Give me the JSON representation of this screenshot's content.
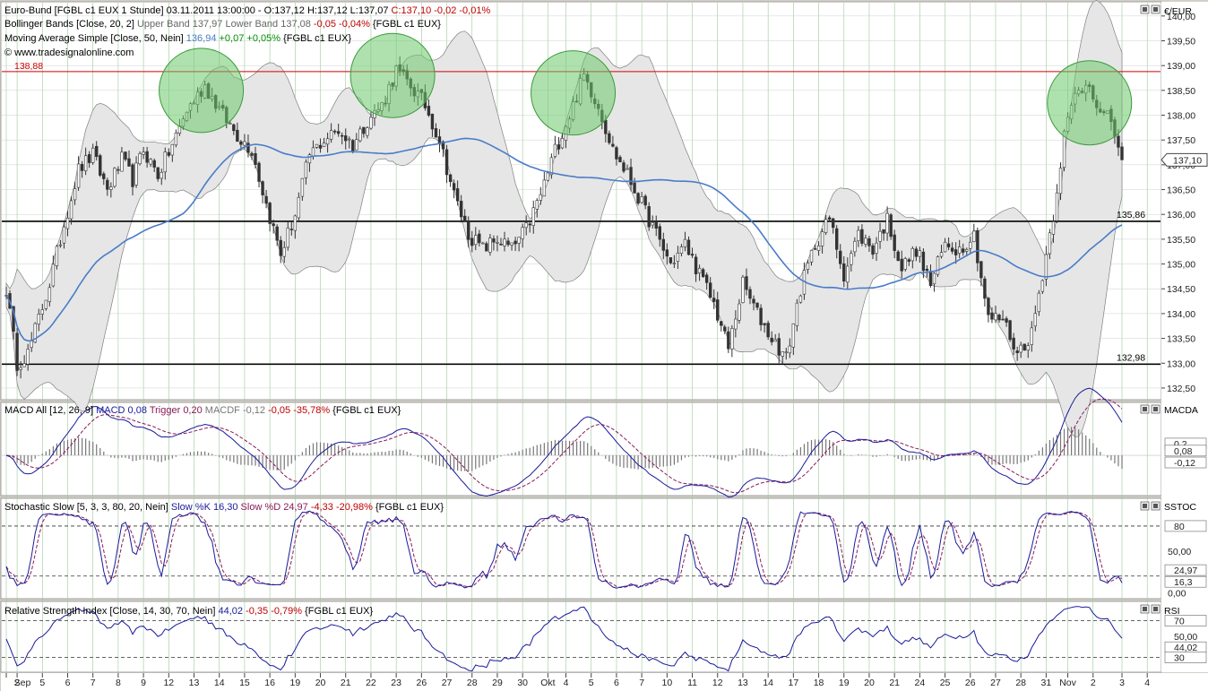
{
  "header": {
    "main": [
      {
        "parts": [
          {
            "text": "Euro-Bund [FGBL c1 EUX  1 Stunde] 03.11.2011 13:00:00 - O:137,12 H:137,12 L:137,07 ",
            "color": "#000000"
          },
          {
            "text": "C:137,10 -0,02 -0,01%",
            "color": "#c00000"
          }
        ]
      },
      {
        "parts": [
          {
            "text": "Bollinger Bands [Close, 20, 2] ",
            "color": "#000000"
          },
          {
            "text": "Upper Band 137,97 Lower Band 137,08 ",
            "color": "#666666"
          },
          {
            "text": "-0,05 -0,04%",
            "color": "#c00000"
          },
          {
            "text": " {FGBL c1 EUX}",
            "color": "#000000"
          }
        ]
      },
      {
        "parts": [
          {
            "text": "Moving Average Simple [Close, 50, Nein] ",
            "color": "#000000"
          },
          {
            "text": "136,94 ",
            "color": "#4a7cc8"
          },
          {
            "text": "+0,07 +0,05%",
            "color": "#009000"
          },
          {
            "text": " {FGBL c1 EUX}",
            "color": "#000000"
          }
        ]
      }
    ],
    "copyright": "© www.tradesignalonline.com",
    "macd": [
      {
        "text": "MACD All [12, 26, 9] ",
        "color": "#000000"
      },
      {
        "text": "MACD 0,08 ",
        "color": "#1a1a9a"
      },
      {
        "text": "Trigger 0,20 ",
        "color": "#8a1a5a"
      },
      {
        "text": "MACDF -0,12 ",
        "color": "#777777"
      },
      {
        "text": "-0,05 -35,78%",
        "color": "#c00000"
      },
      {
        "text": " {FGBL c1 EUX}",
        "color": "#000000"
      }
    ],
    "stoch": [
      {
        "text": "Stochastic Slow [5, 3, 3, 80, 20, Nein] ",
        "color": "#000000"
      },
      {
        "text": "Slow %K 16,30 ",
        "color": "#1a1a9a"
      },
      {
        "text": "Slow %D 24,97 ",
        "color": "#8a1a5a"
      },
      {
        "text": "-4,33 -20,98%",
        "color": "#c00000"
      },
      {
        "text": " {FGBL c1 EUX}",
        "color": "#000000"
      }
    ],
    "rsi": [
      {
        "text": "Relative Strength Index [Close, 14, 30, 70, Nein] ",
        "color": "#000000"
      },
      {
        "text": "44,02 ",
        "color": "#1a1a9a"
      },
      {
        "text": "-0,35 -0,79%",
        "color": "#c00000"
      },
      {
        "text": " {FGBL c1 EUX}",
        "color": "#000000"
      }
    ]
  },
  "panel_names": {
    "main": "€/EUR",
    "macd": "MACDA",
    "stoch": "SSTOC",
    "rsi": "RSI"
  },
  "colors": {
    "candles": "#333333",
    "band_fill": "#e6e6e6",
    "band_line": "#808080",
    "sma": "#4a7cc8",
    "resistance": "#d00000",
    "support": "#000000",
    "highlight": "#6ec86e",
    "macd": "#1a1a9a",
    "trigger": "#8a1a5a",
    "grid": "#9cc89c"
  },
  "chart_data": {
    "type": "line",
    "x_labels": [
      "Sep",
      "2",
      "5",
      "6",
      "7",
      "8",
      "9",
      "12",
      "13",
      "14",
      "15",
      "16",
      "19",
      "20",
      "21",
      "22",
      "23",
      "26",
      "27",
      "28",
      "29",
      "30",
      "Okt",
      "4",
      "5",
      "6",
      "7",
      "10",
      "11",
      "12",
      "13",
      "14",
      "17",
      "18",
      "19",
      "20",
      "21",
      "24",
      "25",
      "26",
      "27",
      "28",
      "31",
      "Nov",
      "2",
      "3",
      "4"
    ],
    "x_label_index": [
      -2,
      3,
      10,
      17,
      24,
      31,
      38,
      45,
      52,
      59,
      66,
      73,
      80,
      87,
      94,
      101,
      108,
      115,
      122,
      129,
      136,
      143,
      150,
      155,
      162,
      169,
      176,
      183,
      190,
      197,
      204,
      211,
      218,
      225,
      232,
      239,
      246,
      253,
      260,
      267,
      274,
      281,
      288,
      294,
      301,
      309,
      316
    ],
    "bars_count": 310,
    "price": {
      "ylim": [
        132.3,
        140.25
      ],
      "ticks": [
        "132,50",
        "133,00",
        "133,50",
        "134,00",
        "134,50",
        "135,00",
        "135,50",
        "136,00",
        "136,50",
        "137,00",
        "137,50",
        "138,00",
        "138,50",
        "139,00",
        "139,50",
        "140,00"
      ],
      "anchors": [
        [
          0,
          134.5
        ],
        [
          3,
          133.0
        ],
        [
          6,
          133.2
        ],
        [
          9,
          133.9
        ],
        [
          12,
          134.6
        ],
        [
          16,
          135.8
        ],
        [
          20,
          136.9
        ],
        [
          24,
          137.2
        ],
        [
          28,
          136.5
        ],
        [
          32,
          137.1
        ],
        [
          35,
          136.7
        ],
        [
          38,
          137.3
        ],
        [
          42,
          136.8
        ],
        [
          46,
          137.4
        ],
        [
          50,
          138.1
        ],
        [
          55,
          138.6
        ],
        [
          60,
          138.0
        ],
        [
          64,
          137.6
        ],
        [
          68,
          137.3
        ],
        [
          72,
          136.2
        ],
        [
          76,
          135.2
        ],
        [
          80,
          136.0
        ],
        [
          84,
          137.2
        ],
        [
          88,
          137.5
        ],
        [
          92,
          137.7
        ],
        [
          96,
          137.4
        ],
        [
          100,
          137.9
        ],
        [
          104,
          138.2
        ],
        [
          108,
          138.9
        ],
        [
          112,
          138.6
        ],
        [
          116,
          138.2
        ],
        [
          120,
          137.5
        ],
        [
          124,
          136.4
        ],
        [
          128,
          135.6
        ],
        [
          132,
          135.3
        ],
        [
          136,
          135.5
        ],
        [
          140,
          135.3
        ],
        [
          144,
          135.7
        ],
        [
          148,
          136.4
        ],
        [
          152,
          137.3
        ],
        [
          156,
          138.0
        ],
        [
          160,
          138.8
        ],
        [
          164,
          138.2
        ],
        [
          168,
          137.3
        ],
        [
          172,
          136.8
        ],
        [
          176,
          136.2
        ],
        [
          180,
          135.6
        ],
        [
          184,
          135.0
        ],
        [
          188,
          135.4
        ],
        [
          192,
          134.8
        ],
        [
          196,
          134.2
        ],
        [
          200,
          133.3
        ],
        [
          204,
          134.6
        ],
        [
          208,
          134.0
        ],
        [
          212,
          133.5
        ],
        [
          216,
          133.1
        ],
        [
          220,
          134.5
        ],
        [
          224,
          135.4
        ],
        [
          228,
          135.9
        ],
        [
          232,
          134.8
        ],
        [
          236,
          135.6
        ],
        [
          240,
          135.3
        ],
        [
          244,
          135.9
        ],
        [
          248,
          134.9
        ],
        [
          252,
          135.3
        ],
        [
          256,
          134.6
        ],
        [
          260,
          135.4
        ],
        [
          264,
          135.3
        ],
        [
          268,
          135.6
        ],
        [
          272,
          133.9
        ],
        [
          276,
          133.9
        ],
        [
          280,
          133.2
        ],
        [
          284,
          133.6
        ],
        [
          288,
          135.2
        ],
        [
          290,
          136.0
        ],
        [
          293,
          137.6
        ],
        [
          296,
          138.4
        ],
        [
          300,
          138.7
        ],
        [
          303,
          138.0
        ],
        [
          306,
          137.9
        ],
        [
          309,
          137.1
        ]
      ],
      "resistance": {
        "value": 138.88,
        "label": "138,88"
      },
      "support_upper": {
        "value": 135.86,
        "label": "135,86"
      },
      "support_lower": {
        "value": 132.98,
        "label": "132,98"
      },
      "last_price": "137,10",
      "circles": [
        {
          "bar": 54,
          "price": 138.5
        },
        {
          "bar": 107,
          "price": 138.8
        },
        {
          "bar": 157,
          "price": 138.45
        },
        {
          "bar": 300,
          "price": 138.25
        }
      ]
    },
    "macd": {
      "ylim": [
        -0.65,
        0.85
      ],
      "last_values": [
        "0,2",
        "0,08",
        "-0,12"
      ]
    },
    "stochastic": {
      "ylim": [
        -5,
        110
      ],
      "levels": [
        80,
        20
      ],
      "ticks": [
        "80",
        "50,00",
        "0,00"
      ],
      "last_values": [
        "24,97",
        "16,3"
      ]
    },
    "rsi": {
      "ylim": [
        15,
        88
      ],
      "levels": [
        70,
        30
      ],
      "last_values": [
        "70",
        "50,00",
        "44,02",
        "30"
      ]
    }
  }
}
